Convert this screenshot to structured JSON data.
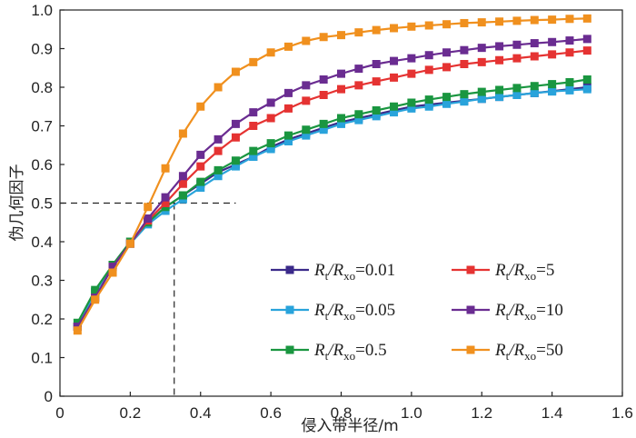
{
  "chart_data": {
    "type": "line",
    "xlabel": "侵入带半径/m",
    "ylabel": "伪几何因子",
    "xlim": [
      0,
      1.6
    ],
    "ylim": [
      0,
      1.0
    ],
    "xticks": [
      "0",
      "0.2",
      "0.4",
      "0.6",
      "0.8",
      "1.0",
      "1.2",
      "1.4",
      "1.6"
    ],
    "yticks": [
      "0",
      "0.1",
      "0.2",
      "0.3",
      "0.4",
      "0.5",
      "0.6",
      "0.7",
      "0.8",
      "0.9",
      "1.0"
    ],
    "grid": false,
    "legend_position": "bottom-right",
    "x": [
      0.05,
      0.1,
      0.15,
      0.2,
      0.25,
      0.3,
      0.35,
      0.4,
      0.45,
      0.5,
      0.55,
      0.6,
      0.65,
      0.7,
      0.75,
      0.8,
      0.85,
      0.9,
      0.95,
      1.0,
      1.05,
      1.1,
      1.15,
      1.2,
      1.25,
      1.3,
      1.35,
      1.4,
      1.45,
      1.5
    ],
    "reference_lines": {
      "x": 0.325,
      "y": 0.5,
      "x_max": 0.5
    },
    "series": [
      {
        "label_main": "R",
        "label_sub1": "t",
        "label_mid": "/R",
        "label_sub2": "xo",
        "label_value": "=0.01",
        "color": "#3b2a8a",
        "values": [
          0.18,
          0.27,
          0.34,
          0.4,
          0.45,
          0.49,
          0.52,
          0.55,
          0.58,
          0.6,
          0.62,
          0.645,
          0.665,
          0.68,
          0.695,
          0.71,
          0.72,
          0.73,
          0.74,
          0.75,
          0.755,
          0.76,
          0.765,
          0.77,
          0.775,
          0.78,
          0.785,
          0.79,
          0.795,
          0.8
        ]
      },
      {
        "label_main": "R",
        "label_sub1": "t",
        "label_mid": "/R",
        "label_sub2": "xo",
        "label_value": "=0.05",
        "color": "#29a3db",
        "values": [
          0.18,
          0.27,
          0.335,
          0.395,
          0.445,
          0.48,
          0.51,
          0.54,
          0.57,
          0.595,
          0.62,
          0.64,
          0.66,
          0.675,
          0.69,
          0.705,
          0.715,
          0.725,
          0.735,
          0.745,
          0.75,
          0.757,
          0.763,
          0.77,
          0.775,
          0.78,
          0.785,
          0.789,
          0.792,
          0.795
        ]
      },
      {
        "label_main": "R",
        "label_sub1": "t",
        "label_mid": "/R",
        "label_sub2": "xo",
        "label_value": "=0.5",
        "color": "#1a9640",
        "values": [
          0.19,
          0.275,
          0.34,
          0.4,
          0.45,
          0.49,
          0.52,
          0.555,
          0.585,
          0.61,
          0.635,
          0.655,
          0.675,
          0.69,
          0.705,
          0.72,
          0.73,
          0.74,
          0.75,
          0.76,
          0.768,
          0.775,
          0.782,
          0.788,
          0.793,
          0.798,
          0.803,
          0.808,
          0.813,
          0.82
        ]
      },
      {
        "label_main": "R",
        "label_sub1": "t",
        "label_mid": "/R",
        "label_sub2": "xo",
        "label_value": "=5",
        "color": "#e53332",
        "values": [
          0.18,
          0.255,
          0.335,
          0.395,
          0.455,
          0.5,
          0.55,
          0.595,
          0.635,
          0.67,
          0.7,
          0.72,
          0.745,
          0.765,
          0.78,
          0.795,
          0.805,
          0.815,
          0.825,
          0.835,
          0.845,
          0.852,
          0.86,
          0.865,
          0.87,
          0.875,
          0.88,
          0.885,
          0.89,
          0.895
        ]
      },
      {
        "label_main": "R",
        "label_sub1": "t",
        "label_mid": "/R",
        "label_sub2": "xo",
        "label_value": "=10",
        "color": "#6a2c91",
        "values": [
          0.18,
          0.255,
          0.335,
          0.395,
          0.46,
          0.515,
          0.57,
          0.625,
          0.665,
          0.705,
          0.735,
          0.76,
          0.785,
          0.805,
          0.82,
          0.835,
          0.848,
          0.86,
          0.868,
          0.875,
          0.883,
          0.89,
          0.896,
          0.902,
          0.906,
          0.91,
          0.914,
          0.917,
          0.921,
          0.925
        ]
      },
      {
        "label_main": "R",
        "label_sub1": "t",
        "label_mid": "/R",
        "label_sub2": "xo",
        "label_value": "=50",
        "color": "#f0901e",
        "values": [
          0.17,
          0.25,
          0.32,
          0.395,
          0.49,
          0.59,
          0.68,
          0.75,
          0.8,
          0.84,
          0.865,
          0.89,
          0.905,
          0.92,
          0.93,
          0.935,
          0.942,
          0.948,
          0.953,
          0.957,
          0.96,
          0.963,
          0.966,
          0.968,
          0.97,
          0.972,
          0.974,
          0.975,
          0.977,
          0.978
        ]
      }
    ]
  }
}
